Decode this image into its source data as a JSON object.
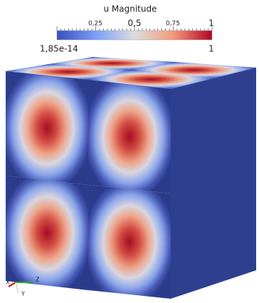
{
  "colorbar": {
    "title": "u Magnitude",
    "ticks": [
      "0,25",
      "0,5",
      "0,75",
      "1"
    ],
    "min_label": "1,85e-14",
    "max_label": "1"
  },
  "axes": {
    "x": "X",
    "y": "Y",
    "z": "Z"
  }
}
